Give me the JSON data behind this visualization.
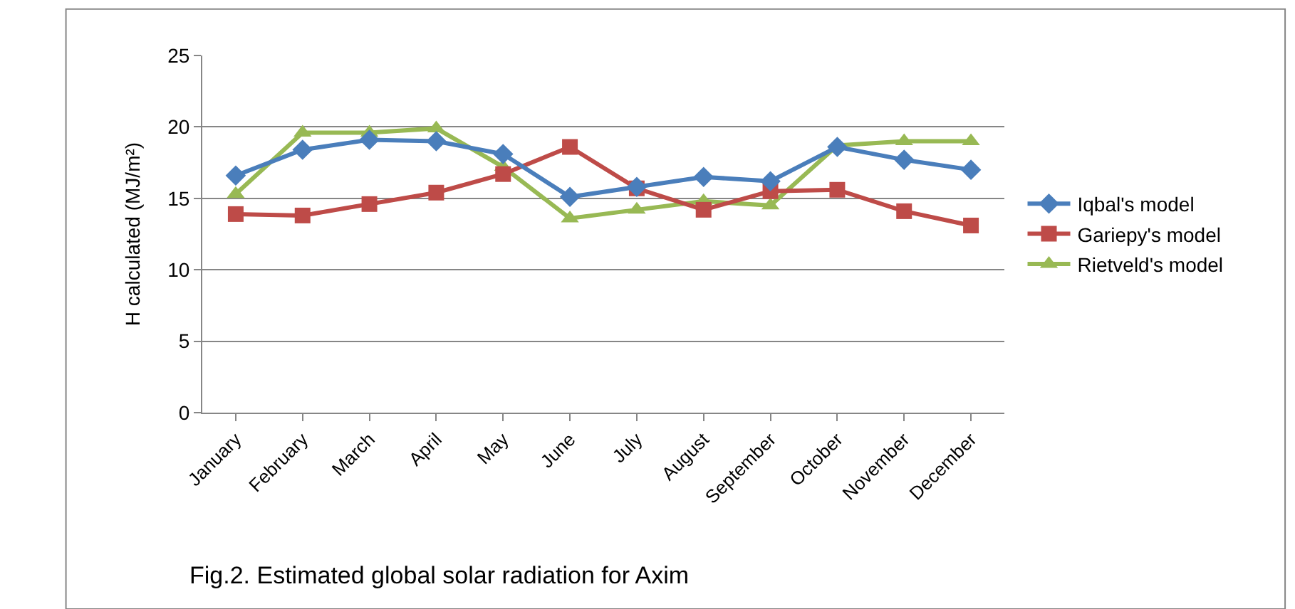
{
  "chart_data": {
    "type": "line",
    "ylabel": "H calculated (MJ/m²)",
    "categories": [
      "January",
      "February",
      "March",
      "April",
      "May",
      "June",
      "July",
      "August",
      "September",
      "October",
      "November",
      "December"
    ],
    "series": [
      {
        "name": "Iqbal's model",
        "color": "#4a7ebb",
        "marker": "diamond",
        "values": [
          16.6,
          18.4,
          19.1,
          19.0,
          18.1,
          15.1,
          15.8,
          16.5,
          16.2,
          18.6,
          17.7,
          17.0
        ]
      },
      {
        "name": "Gariepy's model",
        "color": "#be4b48",
        "marker": "square",
        "values": [
          13.9,
          13.8,
          14.6,
          15.4,
          16.7,
          18.6,
          15.7,
          14.2,
          15.5,
          15.6,
          14.1,
          13.1
        ]
      },
      {
        "name": "Rietveld's model",
        "color": "#98b954",
        "marker": "triangle",
        "values": [
          15.3,
          19.6,
          19.6,
          19.9,
          17.2,
          13.6,
          14.2,
          14.8,
          14.5,
          18.7,
          19.0,
          19.0
        ]
      }
    ],
    "ylim": [
      0,
      25
    ],
    "yticks": [
      0,
      5,
      10,
      15,
      20,
      25
    ],
    "grid": "y",
    "legend": "right",
    "annotations": [
      "Fig.2. Estimated global solar radiation for Axim"
    ]
  }
}
